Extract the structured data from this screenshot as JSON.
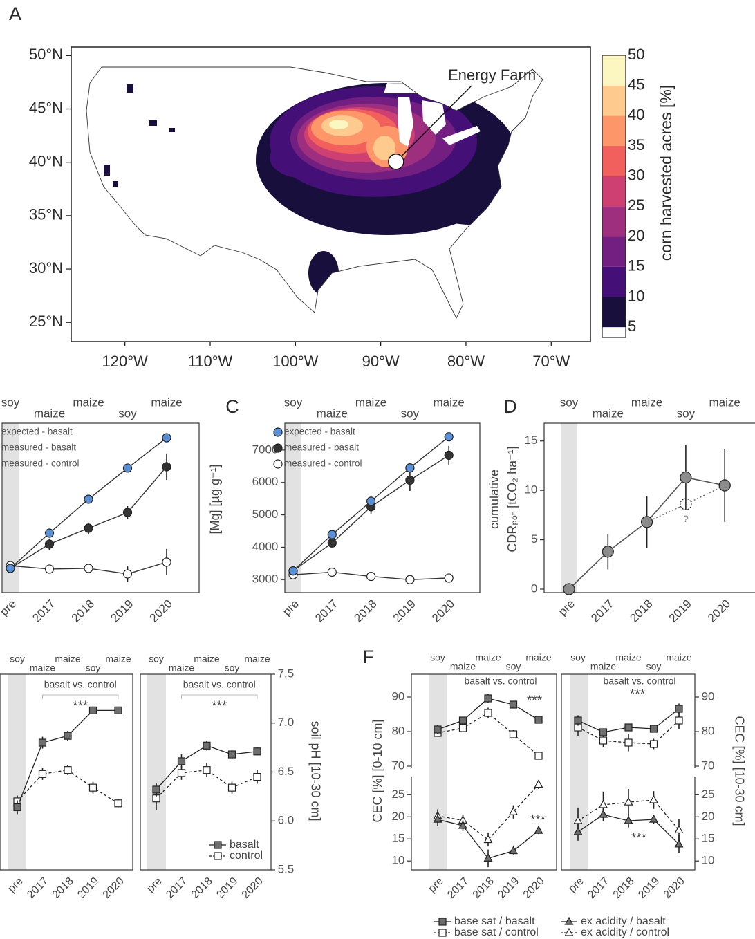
{
  "chart_data": [
    {
      "type": "map",
      "panel": "A",
      "xlim": [
        -126.3,
        -65.4
      ],
      "ylim": [
        23.2,
        50.8
      ],
      "xticks": [
        {
          "value": -120,
          "label": "120°W"
        },
        {
          "value": -110,
          "label": "110°W"
        },
        {
          "value": -100,
          "label": "100°W"
        },
        {
          "value": -90,
          "label": "90°W"
        },
        {
          "value": -80,
          "label": "80°W"
        },
        {
          "value": -70,
          "label": "70°W"
        }
      ],
      "yticks": [
        {
          "value": 25,
          "label": "25°N"
        },
        {
          "value": 30,
          "label": "30°N"
        },
        {
          "value": 35,
          "label": "35°N"
        },
        {
          "value": 40,
          "label": "40°N"
        },
        {
          "value": 45,
          "label": "45°N"
        },
        {
          "value": 50,
          "label": "50°N"
        }
      ],
      "x": [
        -88.2
      ],
      "y": [
        40.06
      ],
      "labels": [
        "Energy Farm"
      ],
      "colorbar": {
        "label": "corn harvested acres [%]",
        "lim": [
          3.3,
          50
        ],
        "ticks": [
          5,
          10,
          15,
          20,
          25,
          30,
          35,
          40,
          45,
          50
        ],
        "colors": [
          "#180f3d",
          "#440f76",
          "#721f81",
          "#9e2f7f",
          "#cd4071",
          "#f1605d",
          "#fd9668",
          "#feca8d",
          "#fcf6c0"
        ],
        "under_color": "#ffffff"
      }
    },
    {
      "type": "line",
      "categories": [
        "pre",
        "2017",
        "2018",
        "2019",
        "2020"
      ],
      "crops": [
        "soy",
        "maize",
        "maize",
        "soy",
        "maize"
      ],
      "ylim": [
        0,
        100
      ],
      "series": [
        {
          "name": "expected - basalt",
          "color": "#5b8fd6",
          "line": "#333333",
          "marker": "circle",
          "dash": false,
          "values": [
            14.3,
            35.1,
            55.1,
            73.5,
            91.4
          ]
        },
        {
          "name": "measured - basalt",
          "color": "#333333",
          "line": "#333333",
          "marker": "circle",
          "dash": false,
          "values": [
            14.3,
            28.6,
            38.0,
            47.3,
            74.3
          ],
          "errors": [
            0,
            3.3,
            3.3,
            3.7,
            7.8
          ]
        },
        {
          "name": "measured - control",
          "color": "#ffffff",
          "line": "#333333",
          "marker": "circle",
          "dash": false,
          "values": [
            15.9,
            13.9,
            14.3,
            11.0,
            18.0
          ],
          "errors": [
            2,
            2,
            2,
            4.9,
            7.8
          ]
        }
      ]
    },
    {
      "type": "line",
      "panel": "C",
      "categories": [
        "pre",
        "2017",
        "2018",
        "2019",
        "2020"
      ],
      "crops": [
        "soy",
        "maize",
        "maize",
        "soy",
        "maize"
      ],
      "ylabel": "[Mg] [µg g⁻¹]",
      "ylim": [
        2600,
        7830
      ],
      "yticks": [
        3000,
        4000,
        5000,
        6000,
        7000
      ],
      "series": [
        {
          "name": "expected - basalt",
          "color": "#5b8fd6",
          "line": "#333333",
          "marker": "circle",
          "dash": false,
          "values": [
            3270,
            4390,
            5420,
            6450,
            7410
          ]
        },
        {
          "name": "measured - basalt",
          "color": "#333333",
          "line": "#333333",
          "marker": "circle",
          "dash": false,
          "values": [
            3270,
            4130,
            5250,
            6070,
            6840
          ],
          "errors": [
            0,
            60,
            220,
            330,
            290
          ]
        },
        {
          "name": "measured - control",
          "color": "#ffffff",
          "line": "#333333",
          "marker": "circle",
          "dash": false,
          "values": [
            3150,
            3230,
            3100,
            3000,
            3050
          ],
          "errors": [
            40,
            40,
            60,
            40,
            80
          ]
        }
      ]
    },
    {
      "type": "line",
      "panel": "D",
      "categories": [
        "pre",
        "2017",
        "2018",
        "2019",
        "2020"
      ],
      "crops": [
        "soy",
        "maize",
        "maize",
        "soy",
        "maize"
      ],
      "ylabel": "cumulative",
      "ylabel2": "CDRₚₒₜ [tCO₂ ha⁻¹]",
      "annotation": "?",
      "ylim": [
        -0.35,
        16.8
      ],
      "yticks": [
        0,
        5,
        10,
        15
      ],
      "series": [
        {
          "color": "#8c8c8c",
          "line": "#555555",
          "marker": "circle",
          "dash": false,
          "values": [
            0,
            3.8,
            6.8,
            11.3,
            10.5
          ],
          "errors": [
            0,
            1.8,
            2.6,
            3.3,
            3.7
          ]
        },
        {
          "color": "#ffffff",
          "line": "#777777",
          "marker": "circle",
          "dash": true,
          "values": [
            null,
            null,
            6.8,
            8.6,
            10.5
          ]
        }
      ]
    },
    {
      "type": "line",
      "categories": [
        "pre",
        "2017",
        "2018",
        "2019",
        "2020"
      ],
      "crops": [
        "soy",
        "maize",
        "maize",
        "soy",
        "maize"
      ],
      "comparison": "basalt vs. control",
      "stars": "***",
      "ylim": [
        5.5,
        7.5
      ],
      "series": [
        {
          "color": "#6e6e6e",
          "line": "#222222",
          "marker": "square",
          "dash": false,
          "values": [
            6.14,
            6.8,
            6.87,
            7.13,
            7.13
          ],
          "errors": [
            0.07,
            0.06,
            0.05,
            0.03,
            0.03
          ]
        },
        {
          "color": "#ffffff",
          "line": "#222222",
          "marker": "square",
          "dash": true,
          "values": [
            6.2,
            6.48,
            6.52,
            6.34,
            6.18
          ],
          "errors": [
            0.06,
            0.06,
            0.05,
            0.06,
            0.04
          ]
        }
      ]
    },
    {
      "type": "line",
      "categories": [
        "pre",
        "2017",
        "2018",
        "2019",
        "2020"
      ],
      "crops": [
        "soy",
        "maize",
        "maize",
        "soy",
        "maize"
      ],
      "comparison": "basalt vs. control",
      "stars": "***",
      "ylabel": "soil pH [10-30 cm]",
      "ylim": [
        5.5,
        7.5
      ],
      "yticks": [
        5.5,
        {
          "value": 6,
          "label": "6.0"
        },
        6.5,
        {
          "value": 7,
          "label": "7.0"
        },
        7.5
      ],
      "series": [
        {
          "name": "basalt",
          "color": "#6e6e6e",
          "line": "#222222",
          "marker": "square",
          "dash": false,
          "values": [
            6.32,
            6.61,
            6.77,
            6.68,
            6.71
          ],
          "errors": [
            0.07,
            0.07,
            0.05,
            0.04,
            0.04
          ]
        },
        {
          "name": "control",
          "color": "#ffffff",
          "line": "#222222",
          "marker": "square",
          "dash": true,
          "values": [
            6.23,
            6.49,
            6.52,
            6.34,
            6.45
          ],
          "errors": [
            0.12,
            0.07,
            0.07,
            0.06,
            0.07
          ]
        }
      ]
    },
    {
      "type": "line",
      "panel": "F",
      "categories": [
        "pre",
        "2017",
        "2018",
        "2019",
        "2020"
      ],
      "crops": [
        "soy",
        "maize",
        "maize",
        "soy",
        "maize"
      ],
      "comparison": "basalt vs. control",
      "stars_upper": "***",
      "stars_lower": "***",
      "ylabel": "CEC [%] [0-10 cm]",
      "ylim": [
        69.6,
        96.6
      ],
      "yticks": [
        70,
        80,
        90
      ],
      "y2lim": [
        8,
        28.8
      ],
      "y2ticks": [
        10,
        15,
        20,
        25
      ],
      "series": [
        {
          "name": "base sat / basalt",
          "color": "#6e6e6e",
          "line": "#222222",
          "marker": "square",
          "dash": false,
          "values": [
            80.6,
            83.2,
            89.6,
            87.8,
            83.4
          ],
          "errors": [
            1.2,
            1,
            1.3,
            0.8,
            1
          ]
        },
        {
          "name": "base sat / control",
          "color": "#ffffff",
          "line": "#222222",
          "marker": "square",
          "dash": true,
          "values": [
            79.6,
            81.0,
            85.4,
            79.2,
            73.0
          ],
          "errors": [
            1,
            1.2,
            1.5,
            1.2,
            1
          ]
        },
        {
          "name": "ex acidity / basalt",
          "color": "#6e6e6e",
          "line": "#222222",
          "marker": "triangle",
          "dash": false,
          "axis": "y2",
          "values": [
            19.4,
            18.0,
            10.6,
            12.3,
            16.9
          ],
          "errors": [
            1.5,
            1.2,
            2,
            0.8,
            0.8
          ]
        },
        {
          "name": "ex acidity / control",
          "color": "#ffffff",
          "line": "#222222",
          "marker": "triangle",
          "dash": true,
          "axis": "y2",
          "values": [
            20.2,
            19.2,
            14.8,
            21.1,
            27.3
          ],
          "errors": [
            1.5,
            1.2,
            1.5,
            1.5,
            1
          ]
        }
      ]
    },
    {
      "type": "line",
      "categories": [
        "pre",
        "2017",
        "2018",
        "2019",
        "2020"
      ],
      "crops": [
        "soy",
        "maize",
        "maize",
        "soy",
        "maize"
      ],
      "comparison": "basalt vs. control",
      "stars_upper": "***",
      "stars_lower": "***",
      "ylabel": "CEC [%] [10-30 cm]",
      "ylim": [
        69.6,
        96.6
      ],
      "yticks": [
        70,
        80,
        90
      ],
      "y2lim": [
        8,
        28.8
      ],
      "y2ticks": [
        10,
        15,
        20,
        25
      ],
      "series": [
        {
          "color": "#6e6e6e",
          "line": "#222222",
          "marker": "square",
          "dash": false,
          "values": [
            83.2,
            79.8,
            81.2,
            80.8,
            86.6
          ],
          "errors": [
            1.5,
            1,
            1,
            1,
            1.5
          ]
        },
        {
          "color": "#ffffff",
          "line": "#222222",
          "marker": "square",
          "dash": true,
          "values": [
            81.2,
            77.4,
            76.8,
            76.4,
            83.2
          ],
          "errors": [
            2.5,
            2,
            2.5,
            1.5,
            2.5
          ]
        },
        {
          "color": "#6e6e6e",
          "line": "#222222",
          "marker": "triangle",
          "dash": false,
          "axis": "y2",
          "values": [
            16.6,
            20.5,
            19.1,
            19.4,
            13.8
          ],
          "errors": [
            2,
            1.5,
            1.5,
            1,
            2
          ]
        },
        {
          "color": "#ffffff",
          "line": "#222222",
          "marker": "triangle",
          "dash": true,
          "axis": "y2",
          "values": [
            19.1,
            22.7,
            23.3,
            23.8,
            17.0
          ],
          "errors": [
            3,
            3,
            3,
            2,
            2.5
          ]
        }
      ]
    }
  ]
}
